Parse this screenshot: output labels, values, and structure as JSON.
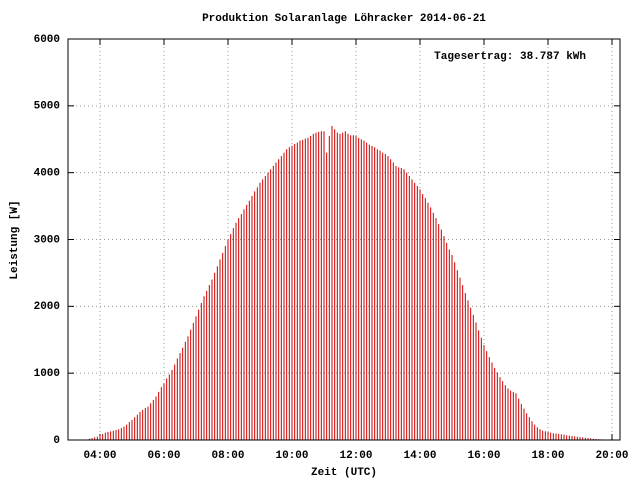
{
  "chart_data": {
    "type": "impulse",
    "title": "Produktion Solaranlage Löhracker 2014-06-21",
    "annotation": "Tagesertrag: 38.787 kWh",
    "xlabel": "Zeit (UTC)",
    "ylabel": "Leistung [W]",
    "x": [
      220,
      225,
      230,
      235,
      240,
      245,
      250,
      255,
      260,
      265,
      270,
      275,
      280,
      285,
      290,
      295,
      300,
      305,
      310,
      315,
      320,
      325,
      330,
      335,
      340,
      345,
      350,
      355,
      360,
      365,
      370,
      375,
      380,
      385,
      390,
      395,
      400,
      405,
      410,
      415,
      420,
      425,
      430,
      435,
      440,
      445,
      450,
      455,
      460,
      465,
      470,
      475,
      480,
      485,
      490,
      495,
      500,
      505,
      510,
      515,
      520,
      525,
      530,
      535,
      540,
      545,
      550,
      555,
      560,
      565,
      570,
      575,
      580,
      585,
      590,
      595,
      600,
      605,
      610,
      615,
      620,
      625,
      630,
      635,
      640,
      645,
      650,
      655,
      660,
      665,
      670,
      675,
      680,
      685,
      690,
      695,
      700,
      705,
      710,
      715,
      720,
      725,
      730,
      735,
      740,
      745,
      750,
      755,
      760,
      765,
      770,
      775,
      780,
      785,
      790,
      795,
      800,
      805,
      810,
      815,
      820,
      825,
      830,
      835,
      840,
      845,
      850,
      855,
      860,
      865,
      870,
      875,
      880,
      885,
      890,
      895,
      900,
      905,
      910,
      915,
      920,
      925,
      930,
      935,
      940,
      945,
      950,
      955,
      960,
      965,
      970,
      975,
      980,
      985,
      990,
      995,
      1000,
      1005,
      1010,
      1015,
      1020,
      1025,
      1030,
      1035,
      1040,
      1045,
      1050,
      1055,
      1060,
      1065,
      1070,
      1075,
      1080,
      1085,
      1090,
      1095,
      1100,
      1105,
      1110,
      1115,
      1120,
      1125,
      1130,
      1135,
      1140,
      1145,
      1150,
      1155,
      1160,
      1165,
      1170,
      1175,
      1180,
      1185,
      1190
    ],
    "values": [
      20,
      30,
      40,
      50,
      60,
      90,
      110,
      120,
      130,
      140,
      150,
      160,
      180,
      200,
      230,
      270,
      300,
      340,
      380,
      420,
      450,
      480,
      500,
      550,
      600,
      650,
      720,
      790,
      850,
      920,
      980,
      1050,
      1130,
      1220,
      1300,
      1380,
      1470,
      1550,
      1650,
      1750,
      1850,
      1950,
      2050,
      2150,
      2230,
      2320,
      2400,
      2500,
      2600,
      2700,
      2800,
      2900,
      3000,
      3080,
      3170,
      3250,
      3320,
      3380,
      3450,
      3520,
      3580,
      3650,
      3720,
      3780,
      3850,
      3900,
      3950,
      4000,
      4050,
      4100,
      4150,
      4200,
      4250,
      4300,
      4350,
      4380,
      4400,
      4430,
      4450,
      4480,
      4490,
      4510,
      4520,
      4550,
      4580,
      4600,
      4610,
      4620,
      4620,
      4300,
      4550,
      4700,
      4650,
      4600,
      4580,
      4600,
      4620,
      4580,
      4560,
      4560,
      4550,
      4520,
      4500,
      4480,
      4450,
      4420,
      4400,
      4380,
      4350,
      4330,
      4300,
      4280,
      4250,
      4200,
      4150,
      4100,
      4080,
      4070,
      4050,
      4000,
      3950,
      3900,
      3850,
      3800,
      3750,
      3680,
      3620,
      3550,
      3480,
      3400,
      3320,
      3230,
      3150,
      3050,
      2950,
      2850,
      2770,
      2660,
      2540,
      2430,
      2320,
      2200,
      2090,
      1980,
      1870,
      1760,
      1640,
      1530,
      1420,
      1330,
      1240,
      1160,
      1080,
      1010,
      940,
      880,
      820,
      770,
      740,
      720,
      700,
      620,
      540,
      470,
      400,
      340,
      280,
      230,
      190,
      160,
      140,
      130,
      120,
      110,
      100,
      95,
      90,
      85,
      80,
      70,
      65,
      60,
      55,
      50,
      45,
      40,
      35,
      30,
      25,
      20,
      15,
      12,
      10,
      8,
      5
    ],
    "color": "#cc0000",
    "xlim": [
      180,
      1215
    ],
    "xticks": [
      {
        "value": 240,
        "label": "04:00"
      },
      {
        "value": 360,
        "label": "06:00"
      },
      {
        "value": 480,
        "label": "08:00"
      },
      {
        "value": 600,
        "label": "10:00"
      },
      {
        "value": 720,
        "label": "12:00"
      },
      {
        "value": 840,
        "label": "14:00"
      },
      {
        "value": 960,
        "label": "16:00"
      },
      {
        "value": 1080,
        "label": "18:00"
      },
      {
        "value": 1200,
        "label": "20:00"
      }
    ],
    "ylim": [
      0,
      6000
    ],
    "yticks": [
      0,
      1000,
      2000,
      3000,
      4000,
      5000,
      6000
    ],
    "grid": true
  }
}
